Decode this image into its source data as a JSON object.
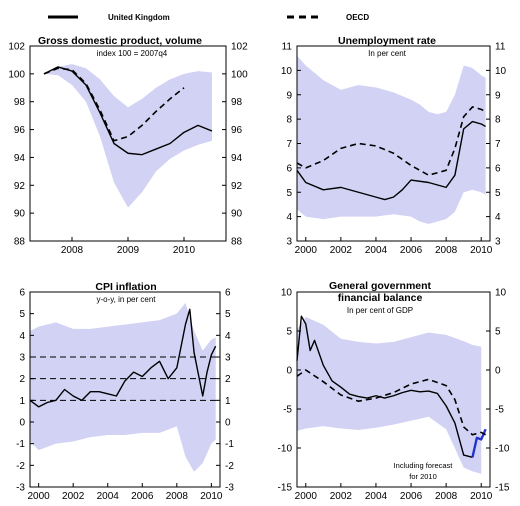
{
  "legend": [
    {
      "label": "United Kingdom",
      "style": "solid"
    },
    {
      "label": "OECD",
      "style": "dashed"
    }
  ],
  "colors": {
    "band": "#d2d2f5",
    "uk": "#000000",
    "oecd": "#000000",
    "forecast": "#2233cc"
  },
  "chart_data": [
    {
      "type": "line",
      "title": "Gross domestic product, volume",
      "subtitle": "index 100 = 2007q4",
      "ylim": [
        88,
        102
      ],
      "yticks": [
        88,
        90,
        92,
        94,
        96,
        98,
        100,
        102
      ],
      "xlim": [
        2007.25,
        2010.75
      ],
      "xticks": [
        2008,
        2009,
        2010
      ],
      "band": {
        "x": [
          2007.5,
          2007.75,
          2008.0,
          2008.25,
          2008.5,
          2008.75,
          2009.0,
          2009.25,
          2009.5,
          2009.75,
          2010.0,
          2010.25,
          2010.5
        ],
        "upper": [
          100.0,
          100.5,
          100.7,
          100.4,
          99.6,
          98.4,
          97.6,
          98.2,
          99.0,
          99.6,
          100.0,
          100.2,
          100.1
        ],
        "lower": [
          100.0,
          99.9,
          99.2,
          98.0,
          95.5,
          92.2,
          90.4,
          91.5,
          93.0,
          93.9,
          94.5,
          94.9,
          95.2
        ]
      },
      "series": [
        {
          "name": "United Kingdom",
          "style": "solid",
          "x": [
            2007.5,
            2007.75,
            2008.0,
            2008.25,
            2008.5,
            2008.75,
            2009.0,
            2009.25,
            2009.5,
            2009.75,
            2010.0,
            2010.25,
            2010.5
          ],
          "y": [
            100.0,
            100.5,
            100.2,
            99.2,
            97.2,
            95.0,
            94.3,
            94.2,
            94.6,
            95.0,
            95.8,
            96.3,
            95.9
          ]
        },
        {
          "name": "OECD",
          "style": "dashed",
          "x": [
            2007.5,
            2007.75,
            2008.0,
            2008.25,
            2008.5,
            2008.75,
            2009.0,
            2009.25,
            2009.5,
            2009.75,
            2010.0
          ],
          "y": [
            100.0,
            100.4,
            100.3,
            99.3,
            97.4,
            95.2,
            95.5,
            96.3,
            97.3,
            98.2,
            99.0
          ]
        }
      ]
    },
    {
      "type": "line",
      "title": "Unemployment rate",
      "subtitle": "In per cent",
      "ylim": [
        3,
        11
      ],
      "yticks": [
        3,
        4,
        5,
        6,
        7,
        8,
        9,
        10,
        11
      ],
      "xlim": [
        1999.5,
        2010.5
      ],
      "xticks": [
        2000,
        2002,
        2004,
        2006,
        2008,
        2010
      ],
      "band": {
        "x": [
          1999.5,
          2000.0,
          2001.0,
          2002.0,
          2003.0,
          2004.0,
          2005.0,
          2006.0,
          2006.5,
          2007.0,
          2007.5,
          2008.0,
          2008.5,
          2009.0,
          2009.5,
          2010.0,
          2010.25
        ],
        "upper": [
          10.6,
          10.2,
          9.6,
          9.2,
          9.4,
          9.3,
          9.1,
          8.8,
          8.6,
          8.3,
          8.2,
          8.3,
          9.0,
          10.2,
          10.1,
          9.8,
          9.7
        ],
        "lower": [
          4.3,
          4.0,
          3.9,
          4.0,
          4.0,
          4.0,
          4.1,
          4.0,
          3.8,
          3.7,
          3.8,
          3.9,
          4.2,
          5.0,
          5.1,
          5.0,
          4.9
        ]
      },
      "series": [
        {
          "name": "United Kingdom",
          "style": "solid",
          "x": [
            1999.5,
            2000.0,
            2001.0,
            2002.0,
            2003.0,
            2004.0,
            2004.5,
            2005.0,
            2005.5,
            2006.0,
            2007.0,
            2008.0,
            2008.5,
            2009.0,
            2009.5,
            2010.0,
            2010.25
          ],
          "y": [
            5.9,
            5.4,
            5.1,
            5.2,
            5.0,
            4.8,
            4.7,
            4.8,
            5.1,
            5.5,
            5.4,
            5.2,
            5.7,
            7.6,
            7.9,
            7.8,
            7.7
          ]
        },
        {
          "name": "OECD",
          "style": "dashed",
          "x": [
            1999.5,
            2000.0,
            2001.0,
            2002.0,
            2003.0,
            2004.0,
            2005.0,
            2006.0,
            2007.0,
            2008.0,
            2008.5,
            2009.0,
            2009.5,
            2010.0,
            2010.25
          ],
          "y": [
            6.2,
            6.0,
            6.3,
            6.8,
            7.0,
            6.9,
            6.6,
            6.1,
            5.7,
            5.9,
            6.8,
            8.1,
            8.5,
            8.4,
            8.3
          ]
        }
      ]
    },
    {
      "type": "line",
      "title": "CPI inflation",
      "subtitle": "y-o-y, in per cent",
      "ylim": [
        -3,
        6
      ],
      "yticks": [
        -3,
        -2,
        -1,
        0,
        1,
        2,
        3,
        4,
        5,
        6
      ],
      "xlim": [
        1999.5,
        2010.5
      ],
      "xticks": [
        2000,
        2002,
        2004,
        2006,
        2008,
        2010
      ],
      "reference_lines": [
        1,
        2,
        3
      ],
      "band": {
        "x": [
          1999.5,
          2000.0,
          2001.0,
          2002.0,
          2003.0,
          2004.0,
          2005.0,
          2006.0,
          2007.0,
          2008.0,
          2008.5,
          2009.0,
          2009.5,
          2010.0,
          2010.25
        ],
        "upper": [
          4.2,
          4.4,
          4.6,
          4.3,
          4.3,
          4.4,
          4.5,
          4.6,
          4.7,
          5.0,
          5.5,
          4.2,
          3.3,
          3.8,
          3.9
        ],
        "lower": [
          -0.9,
          -1.3,
          -1.0,
          -0.9,
          -0.7,
          -0.6,
          -0.6,
          -0.5,
          -0.5,
          -0.2,
          -1.6,
          -2.3,
          -1.9,
          -1.0,
          -0.8
        ]
      },
      "series": [
        {
          "name": "United Kingdom",
          "style": "solid",
          "x": [
            1999.5,
            2000.0,
            2000.5,
            2001.0,
            2001.5,
            2002.0,
            2002.5,
            2003.0,
            2003.5,
            2004.0,
            2004.5,
            2005.0,
            2005.5,
            2006.0,
            2006.5,
            2007.0,
            2007.5,
            2008.0,
            2008.5,
            2008.75,
            2009.0,
            2009.25,
            2009.5,
            2009.75,
            2010.0,
            2010.25
          ],
          "y": [
            1.0,
            0.7,
            0.9,
            1.0,
            1.5,
            1.2,
            1.0,
            1.4,
            1.4,
            1.3,
            1.2,
            1.9,
            2.3,
            2.1,
            2.5,
            2.8,
            2.0,
            2.5,
            4.5,
            5.2,
            3.2,
            2.2,
            1.2,
            2.3,
            3.1,
            3.5
          ]
        }
      ]
    },
    {
      "type": "line",
      "title": "General government financial balance",
      "subtitle": "In per cent of GDP",
      "annotation": "Including forecast for 2010",
      "ylim": [
        -15,
        10
      ],
      "yticks": [
        -15,
        -10,
        -5,
        0,
        5,
        10
      ],
      "xlim": [
        1999.5,
        2010.5
      ],
      "xticks": [
        2000,
        2002,
        2004,
        2006,
        2008,
        2010
      ],
      "band": {
        "x": [
          1999.5,
          2000.0,
          2001.0,
          2002.0,
          2003.0,
          2004.0,
          2005.0,
          2006.0,
          2007.0,
          2008.0,
          2009.0,
          2009.5,
          2010.0
        ],
        "upper": [
          5.2,
          6.8,
          5.8,
          4.0,
          3.6,
          3.4,
          3.6,
          4.2,
          4.8,
          4.5,
          3.7,
          3.2,
          3.0
        ],
        "lower": [
          -7.8,
          -7.5,
          -7.2,
          -7.5,
          -7.7,
          -7.4,
          -7.0,
          -6.5,
          -6.0,
          -7.6,
          -12.5,
          -13.0,
          -13.3
        ]
      },
      "series": [
        {
          "name": "United Kingdom",
          "style": "solid",
          "x": [
            1999.5,
            1999.75,
            2000.0,
            2000.25,
            2000.5,
            2001.0,
            2001.5,
            2002.0,
            2002.5,
            2003.0,
            2003.5,
            2004.0,
            2004.5,
            2005.0,
            2005.5,
            2006.0,
            2006.5,
            2007.0,
            2007.5,
            2008.0,
            2008.5,
            2009.0,
            2009.5
          ],
          "y": [
            1.2,
            6.9,
            5.9,
            2.5,
            3.8,
            0.6,
            -1.4,
            -2.2,
            -3.1,
            -3.4,
            -3.6,
            -3.3,
            -3.6,
            -3.3,
            -2.9,
            -2.6,
            -2.8,
            -2.7,
            -3.0,
            -4.6,
            -6.8,
            -10.9,
            -11.2
          ]
        },
        {
          "name": "United Kingdom forecast",
          "style": "solid-blue",
          "x": [
            2009.5,
            2009.75,
            2010.0,
            2010.25
          ],
          "y": [
            -11.2,
            -8.7,
            -8.9,
            -7.6
          ]
        },
        {
          "name": "OECD",
          "style": "dashed",
          "x": [
            1999.5,
            2000.0,
            2001.0,
            2002.0,
            2003.0,
            2004.0,
            2005.0,
            2006.0,
            2007.0,
            2008.0,
            2008.5,
            2009.0,
            2009.5,
            2010.0,
            2010.25
          ],
          "y": [
            -0.8,
            0.0,
            -1.5,
            -3.2,
            -4.0,
            -3.6,
            -2.9,
            -1.8,
            -1.2,
            -2.0,
            -3.8,
            -7.3,
            -8.3,
            -8.0,
            -8.3
          ]
        }
      ]
    }
  ]
}
